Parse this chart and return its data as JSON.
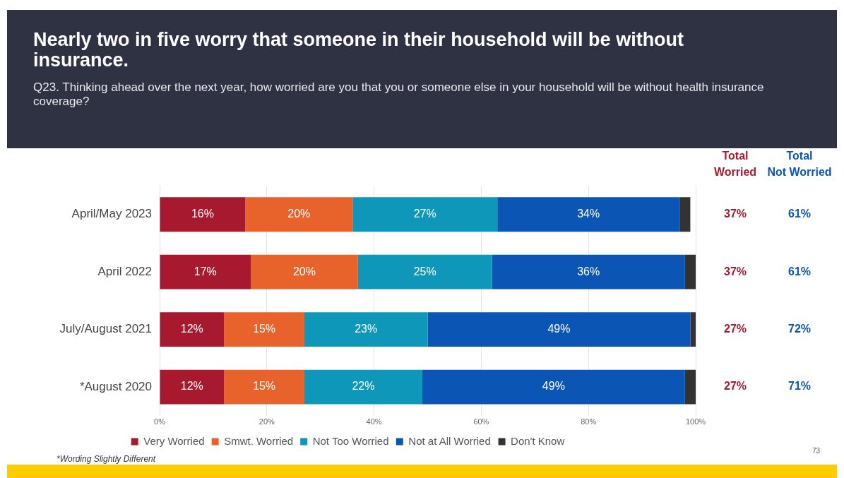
{
  "chart_data": {
    "type": "bar",
    "orientation": "horizontal",
    "stacked": true,
    "title": "Nearly two in five worry that someone in their household will be without insurance.",
    "subtitle": "Q23. Thinking ahead over the next year, how worried are you that you or someone else in your household will be without health insurance coverage?",
    "categories": [
      "April/May 2023",
      "April 2022",
      "July/August 2021",
      "*August 2020"
    ],
    "series": [
      {
        "name": "Very Worried",
        "color": "#a6192e",
        "values": [
          16,
          17,
          12,
          12
        ],
        "value_labels": [
          "16%",
          "17%",
          "12%",
          "12%"
        ]
      },
      {
        "name": "Smwt. Worried",
        "color": "#e8632b",
        "values": [
          20,
          20,
          15,
          15
        ],
        "value_labels": [
          "20%",
          "20%",
          "15%",
          "15%"
        ]
      },
      {
        "name": "Not Too Worried",
        "color": "#0e97b8",
        "values": [
          27,
          25,
          23,
          22
        ],
        "value_labels": [
          "27%",
          "25%",
          "23%",
          "22%"
        ]
      },
      {
        "name": "Not at All Worried",
        "color": "#0b55b5",
        "values": [
          34,
          36,
          49,
          49
        ],
        "value_labels": [
          "34%",
          "36%",
          "49%",
          "49%"
        ]
      },
      {
        "name": "Don't Know",
        "color": "#333333",
        "values": [
          2,
          2,
          1,
          2
        ],
        "value_labels": [
          null,
          null,
          null,
          null
        ]
      }
    ],
    "xlim": [
      0,
      100
    ],
    "xticks": [
      {
        "value": 0,
        "label": "0%"
      },
      {
        "value": 20,
        "label": "20%"
      },
      {
        "value": 40,
        "label": "40%"
      },
      {
        "value": 60,
        "label": "60%"
      },
      {
        "value": 80,
        "label": "80%"
      },
      {
        "value": 100,
        "label": "100%"
      }
    ],
    "grid": "x",
    "legend": "bottom",
    "annotations": [
      "Total Worried",
      "Total Not Worried",
      "37%",
      "61%",
      "37%",
      "61%",
      "27%",
      "72%",
      "27%",
      "71%",
      "*Wording Slightly Different",
      "73"
    ]
  }
}
